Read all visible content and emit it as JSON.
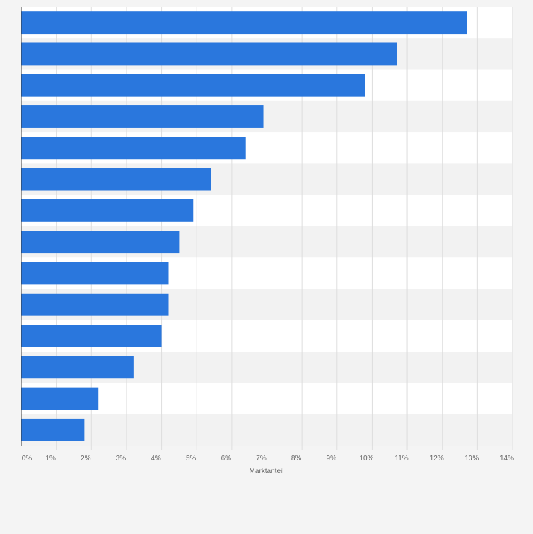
{
  "chart_data": {
    "type": "bar",
    "orientation": "horizontal",
    "categories": [
      "",
      "",
      "",
      "",
      "",
      "",
      "",
      "",
      "",
      "",
      "",
      "",
      "",
      ""
    ],
    "values": [
      12.7,
      10.7,
      9.8,
      6.9,
      6.4,
      5.4,
      4.9,
      4.5,
      4.2,
      4.2,
      4.0,
      3.2,
      2.2,
      1.8
    ],
    "title": "",
    "xlabel": "Marktanteil",
    "ylabel": "",
    "xlim": [
      0,
      14
    ],
    "x_ticks": [
      "0%",
      "1%",
      "2%",
      "3%",
      "4%",
      "5%",
      "6%",
      "7%",
      "8%",
      "9%",
      "10%",
      "11%",
      "12%",
      "13%",
      "14%"
    ],
    "grid": true,
    "legend": "none",
    "bar_color": "#2a77dd"
  }
}
